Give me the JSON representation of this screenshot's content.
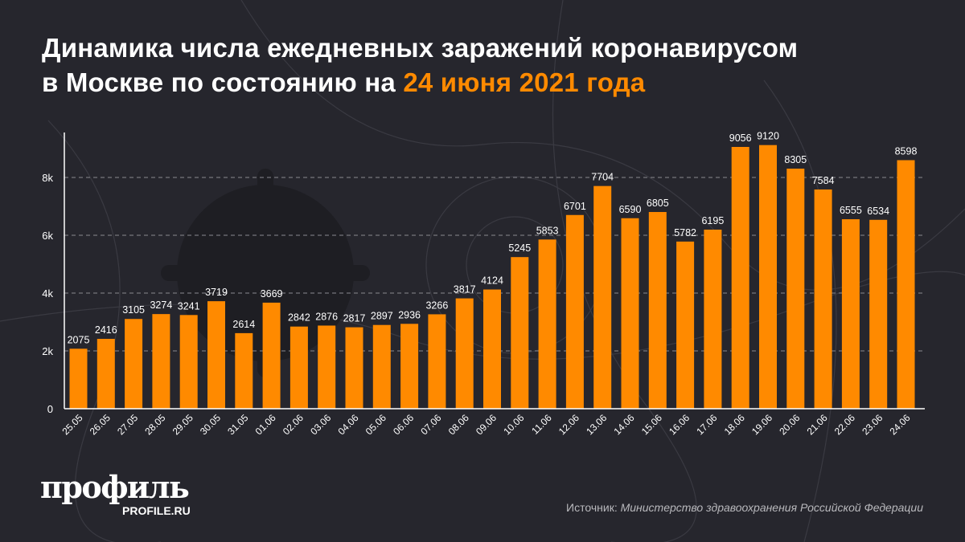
{
  "title": {
    "line1": "Динамика числа ежедневных заражений коронавирусом",
    "line2_prefix": "в Москве по состоянию на ",
    "line2_highlight": "24 июня 2021 года"
  },
  "colors": {
    "background": "#26262d",
    "bar": "#ff8a00",
    "highlight": "#ff8a00",
    "text": "#ffffff"
  },
  "logo": {
    "name": "профиль",
    "site": "PROFILE.RU"
  },
  "source": {
    "label": "Источник:",
    "text": "Министерство здравоохранения Российской Федерации"
  },
  "chart_data": {
    "type": "bar",
    "categories": [
      "25.05",
      "26.05",
      "27.05",
      "28.05",
      "29.05",
      "30.05",
      "31.05",
      "01.06",
      "02.06",
      "03.06",
      "04.06",
      "05.06",
      "06.06",
      "07.06",
      "08.06",
      "09.06",
      "10.06",
      "11.06",
      "12.06",
      "13.06",
      "14.06",
      "15.06",
      "16.06",
      "17.06",
      "18.06",
      "19.06",
      "20.06",
      "21.06",
      "22.06",
      "23.06",
      "24.06"
    ],
    "values": [
      2075,
      2416,
      3105,
      3274,
      3241,
      3719,
      2614,
      3669,
      2842,
      2876,
      2817,
      2897,
      2936,
      3266,
      3817,
      4124,
      5245,
      5853,
      6701,
      7704,
      6590,
      6805,
      5782,
      6195,
      9056,
      9120,
      8305,
      7584,
      6555,
      6534,
      8598
    ],
    "yticks": [
      0,
      2000,
      4000,
      6000,
      8000
    ],
    "ytick_labels": [
      "0",
      "2k",
      "4k",
      "6k",
      "8k"
    ],
    "ylim": [
      0,
      9600
    ],
    "grid": "horizontal dashed",
    "data_labels": true
  }
}
